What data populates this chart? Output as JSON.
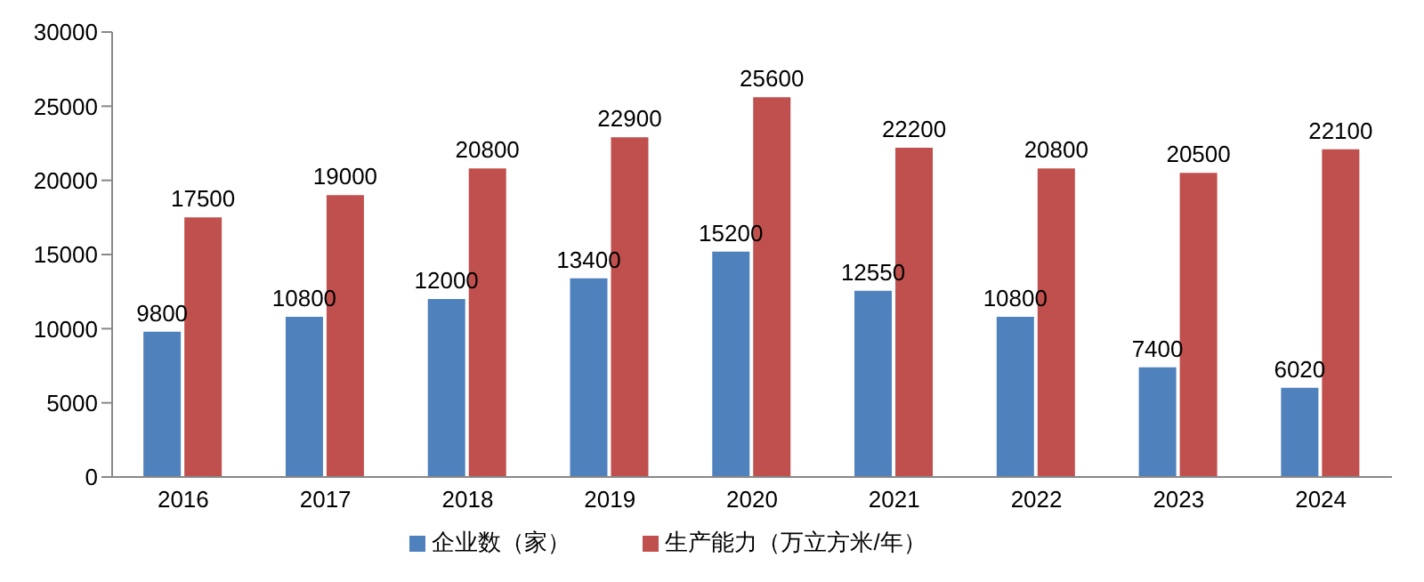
{
  "chart_data": {
    "type": "bar",
    "categories": [
      "2016",
      "2017",
      "2018",
      "2019",
      "2020",
      "2021",
      "2022",
      "2023",
      "2024"
    ],
    "series": [
      {
        "name": "企业数（家）",
        "color": "#4f81bd",
        "values": [
          9800,
          10800,
          12000,
          13400,
          15200,
          12550,
          10800,
          7400,
          6020
        ]
      },
      {
        "name": "生产能力（万立方米/年）",
        "color": "#c0504d",
        "values": [
          17500,
          19000,
          20800,
          22900,
          25600,
          22200,
          20800,
          20500,
          22100
        ]
      }
    ],
    "ylim": [
      0,
      30000
    ],
    "yticks": [
      0,
      5000,
      10000,
      15000,
      20000,
      25000,
      30000
    ],
    "data_labels": true,
    "grid": false,
    "legend": "bottom"
  }
}
